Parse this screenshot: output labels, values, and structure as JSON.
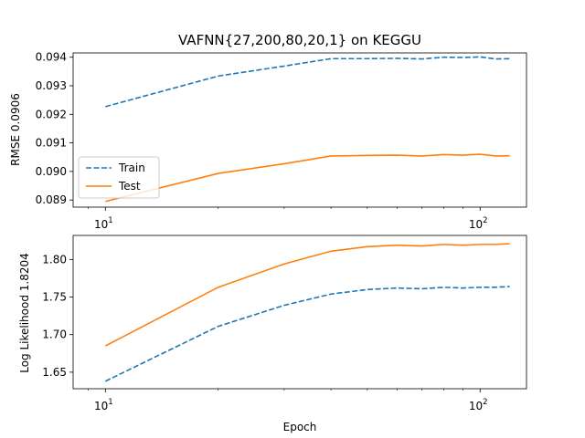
{
  "chart_data": [
    {
      "type": "line",
      "title": "VAFNN{27,200,80,20,1} on KEGGU",
      "xlabel": "",
      "ylabel": "RMSE 0.0906",
      "x_scale": "log",
      "xlim": [
        8.2,
        133
      ],
      "ylim": [
        0.08875,
        0.09415
      ],
      "x_ticks": [
        {
          "value": 10,
          "base": "10",
          "exp": "1"
        },
        {
          "value": 100,
          "base": "10",
          "exp": "2"
        }
      ],
      "y_ticks": [
        {
          "value": 0.089,
          "label": "0.089"
        },
        {
          "value": 0.09,
          "label": "0.090"
        },
        {
          "value": 0.091,
          "label": "0.091"
        },
        {
          "value": 0.092,
          "label": "0.092"
        },
        {
          "value": 0.093,
          "label": "0.093"
        },
        {
          "value": 0.094,
          "label": "0.094"
        }
      ],
      "x": [
        10,
        20,
        30,
        40,
        50,
        60,
        70,
        80,
        90,
        100,
        110,
        120
      ],
      "series": [
        {
          "name": "Train",
          "style": "dashed",
          "color": "#1f77b4",
          "values": [
            0.09227,
            0.09334,
            0.09369,
            0.09395,
            0.09395,
            0.09396,
            0.09394,
            0.094,
            0.09399,
            0.09401,
            0.09394,
            0.09395
          ]
        },
        {
          "name": "Test",
          "style": "solid",
          "color": "#ff7f0e",
          "values": [
            0.08895,
            0.08993,
            0.09027,
            0.09054,
            0.09056,
            0.09057,
            0.09054,
            0.09059,
            0.09057,
            0.0906,
            0.09054,
            0.09055
          ]
        }
      ],
      "legend": {
        "placement": "lower-left",
        "entries": [
          "Train",
          "Test"
        ]
      },
      "grid": false
    },
    {
      "type": "line",
      "title": "",
      "xlabel": "Epoch",
      "ylabel": "Log Likelihood 1.8204",
      "x_scale": "log",
      "xlim": [
        8.2,
        133
      ],
      "ylim": [
        1.628,
        1.832
      ],
      "x_ticks": [
        {
          "value": 10,
          "base": "10",
          "exp": "1"
        },
        {
          "value": 100,
          "base": "10",
          "exp": "2"
        }
      ],
      "y_ticks": [
        {
          "value": 1.65,
          "label": "1.65"
        },
        {
          "value": 1.7,
          "label": "1.70"
        },
        {
          "value": 1.75,
          "label": "1.75"
        },
        {
          "value": 1.8,
          "label": "1.80"
        }
      ],
      "x": [
        10,
        20,
        30,
        40,
        50,
        60,
        70,
        80,
        90,
        100,
        110,
        120
      ],
      "series": [
        {
          "name": "Train",
          "style": "dashed",
          "color": "#1f77b4",
          "values": [
            1.638,
            1.711,
            1.739,
            1.754,
            1.76,
            1.762,
            1.761,
            1.763,
            1.762,
            1.763,
            1.763,
            1.764
          ]
        },
        {
          "name": "Test",
          "style": "solid",
          "color": "#ff7f0e",
          "values": [
            1.685,
            1.763,
            1.794,
            1.811,
            1.817,
            1.819,
            1.818,
            1.82,
            1.819,
            1.82,
            1.82,
            1.821
          ]
        }
      ],
      "grid": false
    }
  ]
}
